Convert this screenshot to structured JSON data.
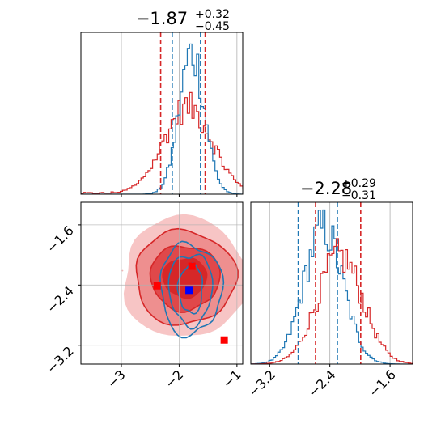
{
  "chart_data": [
    {
      "panel": "top-left",
      "type": "histogram",
      "title": {
        "main": "−1.87",
        "sup": "+0.32",
        "sub": "−0.45"
      },
      "xlim": [
        -3.7,
        -0.9
      ],
      "grid": true,
      "series": [
        {
          "color": "#d62728",
          "mean": -1.87,
          "sd": 0.42
        },
        {
          "color": "#1f77b4",
          "mean": -1.8,
          "sd": 0.22
        }
      ],
      "quantile_lines": [
        {
          "color": "#d62728",
          "x": -2.32
        },
        {
          "color": "#d62728",
          "x": -1.55
        },
        {
          "color": "#1f77b4",
          "x": -2.12
        },
        {
          "color": "#1f77b4",
          "x": -1.63
        }
      ]
    },
    {
      "panel": "bottom-left",
      "type": "contour",
      "xlim": [
        -3.7,
        -0.9
      ],
      "ylim": [
        -3.45,
        -1.3
      ],
      "xticks": [
        -3,
        -2,
        -1
      ],
      "xtick_labels": [
        "−3",
        "−2",
        "−1"
      ],
      "yticks": [
        -1.6,
        -2.4,
        -3.2
      ],
      "ytick_labels": [
        "−1.6",
        "−2.4",
        "−3.2"
      ],
      "grid": true,
      "series": [
        {
          "color": "#d62728",
          "filled": true,
          "center": [
            -1.9,
            -2.3
          ],
          "levels": [
            0.3,
            0.6,
            0.85
          ]
        },
        {
          "color": "#1f77b4",
          "filled": false,
          "center": [
            -1.8,
            -2.45
          ],
          "levels": [
            0.3,
            0.6,
            0.85
          ]
        }
      ],
      "markers": [
        {
          "color": "#ff0000",
          "x": -1.78,
          "y": -2.15
        },
        {
          "color": "#ff0000",
          "x": -2.38,
          "y": -2.41
        },
        {
          "color": "#ff0000",
          "x": -1.22,
          "y": -3.13
        },
        {
          "color": "#0000ff",
          "x": -1.83,
          "y": -2.47
        }
      ]
    },
    {
      "panel": "bottom-right",
      "type": "histogram",
      "title": {
        "main": "−2.28",
        "sup": "+0.29",
        "sub": "−0.31"
      },
      "xlim": [
        -3.45,
        -1.3
      ],
      "xticks": [
        -3.2,
        -2.4,
        -1.6
      ],
      "xtick_labels": [
        "−3.2",
        "−2.4",
        "−1.6"
      ],
      "grid": true,
      "series": [
        {
          "color": "#1f77b4",
          "mean": -2.5,
          "sd": 0.26
        },
        {
          "color": "#d62728",
          "mean": -2.28,
          "sd": 0.3
        }
      ],
      "quantile_lines": [
        {
          "color": "#1f77b4",
          "x": -2.82
        },
        {
          "color": "#1f77b4",
          "x": -2.3
        },
        {
          "color": "#d62728",
          "x": -2.59
        },
        {
          "color": "#d62728",
          "x": -1.99
        }
      ]
    }
  ]
}
